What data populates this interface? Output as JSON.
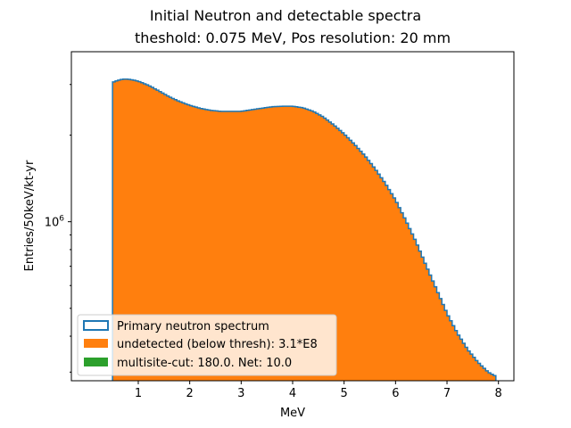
{
  "chart_data": {
    "type": "histogram",
    "title_line1": "Initial Neutron and detectable spectra",
    "title_line2": "theshold: 0.075 MeV, Pos resolution: 20 mm",
    "xlabel": "MeV",
    "ylabel": "Entries/50keV/kt-yr",
    "y_scale": "log",
    "xlim": [
      -0.3,
      8.3
    ],
    "ylim": [
      280000,
      3900000
    ],
    "x_ticks": [
      1,
      2,
      3,
      4,
      5,
      6,
      7,
      8
    ],
    "y_ticks": [
      {
        "value": 1000000,
        "label": "10^6"
      }
    ],
    "bin_width": 0.05,
    "grid": false,
    "legend_position": "lower-left",
    "series": [
      {
        "name": "Primary neutron spectrum",
        "style": "step",
        "color": "#1f77b4"
      },
      {
        "name": "undetected (below thresh): 3.1*E8",
        "style": "filled",
        "color": "#ff7f0e"
      },
      {
        "name": "multisite-cut: 180.0. Net: 10.0",
        "style": "filled",
        "color": "#2ca02c"
      }
    ],
    "curve": {
      "x": [
        0.5,
        0.6,
        0.7,
        0.8,
        0.9,
        1.0,
        1.2,
        1.4,
        1.6,
        1.8,
        2.0,
        2.2,
        2.4,
        2.6,
        2.8,
        3.0,
        3.2,
        3.4,
        3.6,
        3.8,
        4.0,
        4.2,
        4.4,
        4.6,
        4.8,
        5.0,
        5.2,
        5.4,
        5.6,
        5.8,
        6.0,
        6.2,
        6.4,
        6.6,
        6.8,
        7.0,
        7.2,
        7.4,
        7.6,
        7.8,
        7.95
      ],
      "y": [
        3050000,
        3100000,
        3130000,
        3130000,
        3110000,
        3080000,
        2980000,
        2850000,
        2720000,
        2620000,
        2540000,
        2480000,
        2440000,
        2420000,
        2420000,
        2420000,
        2450000,
        2480000,
        2510000,
        2520000,
        2520000,
        2490000,
        2420000,
        2310000,
        2170000,
        2020000,
        1860000,
        1700000,
        1530000,
        1360000,
        1190000,
        1010000,
        850000,
        700000,
        580000,
        480000,
        410000,
        360000,
        325000,
        300000,
        290000
      ]
    }
  }
}
